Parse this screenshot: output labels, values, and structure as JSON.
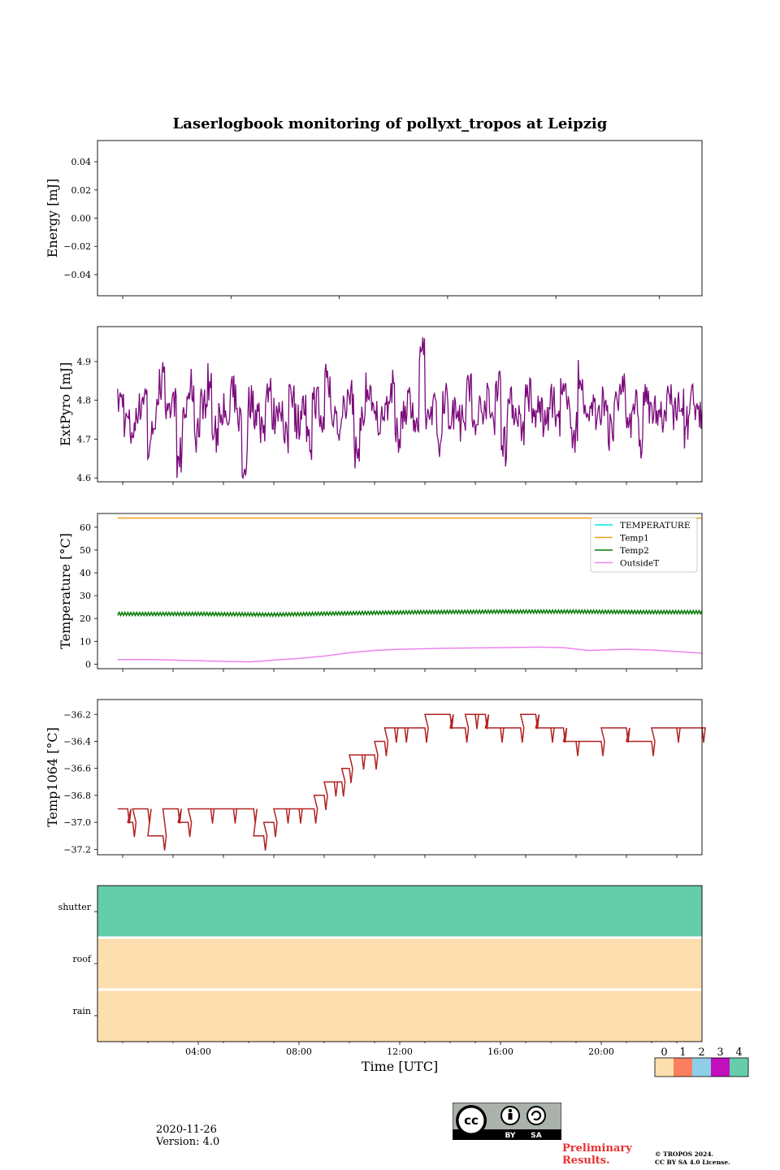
{
  "title": "Laserlogbook monitoring of pollyxt_tropos at Leipzig",
  "footer": {
    "date": "2020-11-26",
    "version": "Version: 4.0",
    "preliminary_line1": "Preliminary",
    "preliminary_line2": "Results.",
    "copyright_line1": "© TROPOS 2024.",
    "copyright_line2": "CC BY SA 4.0 License.",
    "license_badge": [
      "cc",
      "BY",
      "SA"
    ],
    "preliminary_color": "#e8312f"
  },
  "chart_data": [
    {
      "type": "line",
      "name": "energy",
      "ylabel": "Energy [mJ]",
      "ylim": [
        -0.055,
        0.055
      ],
      "yticks": [
        0.04,
        0.02,
        0.0,
        -0.02,
        -0.04
      ],
      "ytick_labels": [
        "0.04",
        "0.02",
        "0.00",
        "−0.02",
        "−0.04"
      ],
      "series": []
    },
    {
      "type": "line",
      "name": "extpyro",
      "ylabel": "ExtPyro [mJ]",
      "ylim": [
        4.59,
        4.99
      ],
      "yticks": [
        4.9,
        4.8,
        4.7,
        4.6
      ],
      "ytick_labels": [
        "4.9",
        "4.8",
        "4.7",
        "4.6"
      ],
      "series": [
        {
          "name": "ExtPyro",
          "color": "#7b0a7b",
          "x_range": [
            0.8,
            24.0
          ],
          "points": [
            4.8,
            4.75,
            4.72,
            4.78,
            4.81,
            4.69,
            4.76,
            4.88,
            4.74,
            4.8,
            4.66,
            4.77,
            4.83,
            4.72,
            4.79,
            4.85,
            4.7,
            4.78,
            4.74,
            4.81,
            4.76,
            4.64,
            4.8,
            4.77,
            4.73,
            4.82,
            4.76,
            4.79,
            4.71,
            4.84,
            4.75,
            4.78,
            4.7,
            4.8,
            4.74,
            4.86,
            4.77,
            4.72,
            4.79,
            4.81,
            4.68,
            4.75,
            4.83,
            4.76,
            4.74,
            4.79,
            4.82,
            4.71,
            4.77,
            4.8,
            4.73,
            4.9,
            4.76,
            4.78,
            4.69,
            4.81,
            4.75,
            4.79,
            4.74,
            4.83,
            4.72,
            4.78,
            4.8,
            4.76,
            4.85,
            4.7,
            4.79,
            4.77,
            4.74,
            4.82,
            4.76,
            4.78,
            4.73,
            4.8,
            4.75,
            4.81,
            4.77,
            4.71,
            4.84,
            4.76,
            4.79,
            4.74,
            4.8,
            4.72,
            4.78,
            4.83,
            4.75,
            4.79,
            4.7,
            4.81,
            4.76,
            4.78,
            4.74,
            4.82,
            4.77,
            4.79,
            4.73,
            4.8,
            4.76,
            4.78
          ]
        }
      ]
    },
    {
      "type": "line",
      "name": "temperature",
      "ylabel": "Temperature [°C]",
      "ylim": [
        -2,
        66
      ],
      "yticks": [
        60,
        50,
        40,
        30,
        20,
        10,
        0
      ],
      "ytick_labels": [
        "60",
        "50",
        "40",
        "30",
        "20",
        "10",
        "0"
      ],
      "legend_position": "top-right",
      "series": [
        {
          "name": "TEMPERATURE",
          "color": "#00e5e5",
          "x": [],
          "y": []
        },
        {
          "name": "Temp1",
          "color": "#f4a018",
          "x": [
            0.8,
            24.0
          ],
          "y": [
            64,
            64
          ]
        },
        {
          "name": "Temp2",
          "color": "#007a00",
          "x": [
            0.8,
            4,
            6,
            7,
            10,
            13,
            16,
            19,
            22,
            24.0
          ],
          "y": [
            22.0,
            22.0,
            21.8,
            21.7,
            22.3,
            22.8,
            23.0,
            23.0,
            22.8,
            22.8
          ]
        },
        {
          "name": "OutsideT",
          "color": "#ee82ee",
          "x": [
            0.8,
            2,
            3,
            4,
            5,
            6,
            6.5,
            7,
            8,
            9,
            10,
            11,
            12,
            14,
            16,
            17.5,
            18.5,
            19.5,
            21,
            22,
            23,
            24.0
          ],
          "y": [
            2.0,
            2.0,
            1.8,
            1.5,
            1.2,
            1.0,
            1.3,
            1.8,
            2.5,
            3.5,
            5.0,
            6.0,
            6.5,
            7.0,
            7.2,
            7.5,
            7.2,
            6.0,
            6.5,
            6.2,
            5.5,
            4.8
          ]
        }
      ]
    },
    {
      "type": "line",
      "name": "temp1064",
      "ylabel": "Temp1064 [°C]",
      "ylim": [
        -37.24,
        -36.09
      ],
      "yticks": [
        -36.2,
        -36.4,
        -36.6,
        -36.8,
        -37.0,
        -37.2
      ],
      "ytick_labels": [
        "−36.2",
        "−36.4",
        "−36.6",
        "−36.8",
        "−37.0",
        "−37.2"
      ],
      "series": [
        {
          "name": "Temp1064",
          "color": "#b22222",
          "x": [
            0.8,
            1.2,
            1.4,
            2.0,
            2.6,
            3.2,
            3.6,
            4.5,
            5.4,
            6.2,
            6.6,
            7.0,
            7.5,
            8.0,
            8.6,
            9.0,
            9.4,
            9.7,
            10.0,
            10.5,
            11.0,
            11.4,
            11.8,
            12.2,
            13.0,
            14.0,
            14.6,
            15.0,
            15.4,
            16.0,
            16.8,
            17.4,
            18.0,
            18.5,
            19.0,
            20.0,
            21.0,
            22.0,
            23.0,
            24.0
          ],
          "y": [
            -36.9,
            -37.0,
            -36.9,
            -37.1,
            -36.9,
            -37.0,
            -36.9,
            -36.9,
            -36.9,
            -37.1,
            -37.0,
            -36.9,
            -36.9,
            -36.9,
            -36.8,
            -36.7,
            -36.7,
            -36.6,
            -36.5,
            -36.5,
            -36.4,
            -36.3,
            -36.3,
            -36.3,
            -36.2,
            -36.3,
            -36.2,
            -36.2,
            -36.3,
            -36.3,
            -36.2,
            -36.3,
            -36.3,
            -36.4,
            -36.4,
            -36.3,
            -36.4,
            -36.3,
            -36.3,
            -36.3
          ]
        }
      ]
    },
    {
      "type": "heatmap",
      "name": "status",
      "rows": [
        "shutter",
        "roof",
        "rain"
      ],
      "row_values": [
        4,
        0,
        0
      ],
      "xlabel": "Time [UTC]",
      "xlim": [
        0,
        24
      ],
      "xticks": [
        4,
        8,
        12,
        16,
        20
      ],
      "xtick_labels": [
        "04:00",
        "08:00",
        "12:00",
        "16:00",
        "20:00"
      ],
      "colorbar": {
        "levels": [
          "0",
          "1",
          "2",
          "3",
          "4"
        ],
        "colors": [
          "#fddeae",
          "#fa7f5f",
          "#8ecfe8",
          "#c20fbe",
          "#66cdaa"
        ]
      }
    }
  ]
}
